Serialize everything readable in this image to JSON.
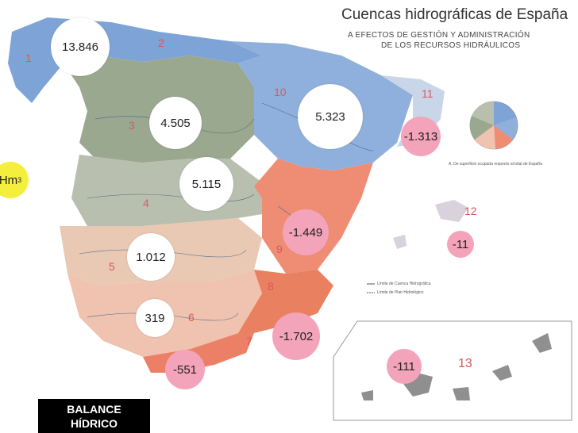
{
  "header": {
    "title": "Cuencas hidrográficas de España",
    "subtitle_line1": "A EFECTOS DE GESTIÓN Y ADMINISTRACIÓN",
    "subtitle_line2": "DE LOS RECURSOS HIDRÁULICOS"
  },
  "unit_label": "Hm",
  "unit_exponent": "3",
  "badge": {
    "line1": "BALANCE",
    "line2": "HÍDRICO"
  },
  "basins": [
    {
      "number": "1",
      "balance": "13.846"
    },
    {
      "number": "2",
      "balance": ""
    },
    {
      "number": "3",
      "balance": "4.505"
    },
    {
      "number": "4",
      "balance": "5.115"
    },
    {
      "number": "5",
      "balance": "1.012"
    },
    {
      "number": "6",
      "balance": "319"
    },
    {
      "number": "7",
      "balance": "-551"
    },
    {
      "number": "8",
      "balance": "-1.702"
    },
    {
      "number": "9",
      "balance": "-1.449"
    },
    {
      "number": "10",
      "balance": "5.323"
    },
    {
      "number": "11",
      "balance": "-1.313"
    },
    {
      "number": "12",
      "balance": "-11"
    },
    {
      "number": "13",
      "balance": "-111"
    }
  ],
  "colors": {
    "north": "#7ea3d6",
    "duero": "#9aa88f",
    "tajo": "#b8bfae",
    "guadiana": "#e9c8b4",
    "guadalquivir": "#f0c2b0",
    "sur": "#ec8066",
    "segura": "#e9805f",
    "jucar": "#ef8c74",
    "ebro": "#8fb0dc",
    "cataluna": "#c9d6ea",
    "bubble_pink": "#f3a3ba",
    "unit_yellow": "#f4ef3c"
  },
  "legend_small": {
    "pie_note": "A. De superficie ocupada respecto al total de España",
    "line1": "Límite de Cuenca Hidrográfica",
    "line2": "Límite de Plan Hidrológico"
  }
}
